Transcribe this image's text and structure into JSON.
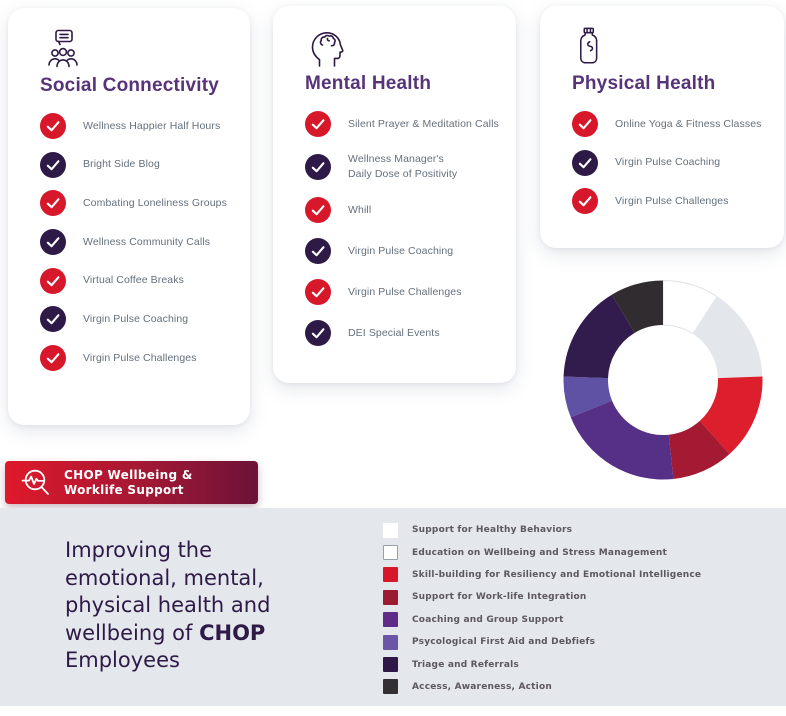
{
  "colors": {
    "check_red": "#d7182a",
    "check_purple": "#2e1a47",
    "title_purple": "#573379",
    "panel_bg": "#e4e7eb",
    "banner_gradient_start": "#e0192b",
    "banner_gradient_end": "#6d1238"
  },
  "cards": [
    {
      "title": "Social Connectivity",
      "icon": "people-chat-icon",
      "items": [
        {
          "label": "Wellness Happier Half Hours",
          "check": "red"
        },
        {
          "label": "Bright Side Blog",
          "check": "purple"
        },
        {
          "label": "Combating Loneliness Groups",
          "check": "red"
        },
        {
          "label": "Wellness Community Calls",
          "check": "purple"
        },
        {
          "label": "Virtual Coffee Breaks",
          "check": "red"
        },
        {
          "label": "Virgin Pulse Coaching",
          "check": "purple"
        },
        {
          "label": "Virgin Pulse Challenges",
          "check": "red"
        }
      ]
    },
    {
      "title": "Mental Health",
      "icon": "head-brain-icon",
      "items": [
        {
          "label": "Silent Prayer & Meditation Calls",
          "check": "red"
        },
        {
          "label": "Wellness Manager's\nDaily Dose of Positivity",
          "check": "purple"
        },
        {
          "label": "Whill",
          "check": "red"
        },
        {
          "label": "Virgin Pulse Coaching",
          "check": "purple"
        },
        {
          "label": "Virgin Pulse Challenges",
          "check": "red"
        },
        {
          "label": "DEI Special Events",
          "check": "purple"
        }
      ]
    },
    {
      "title": "Physical Health",
      "icon": "bottle-icon",
      "items": [
        {
          "label": "Online Yoga & Fitness Classes",
          "check": "red"
        },
        {
          "label": "Virgin Pulse Coaching",
          "check": "purple"
        },
        {
          "label": "Virgin Pulse Challenges",
          "check": "red"
        }
      ]
    }
  ],
  "banner": {
    "icon": "magnifier-pulse-icon",
    "line1": "CHOP Wellbeing &",
    "line2": "Worklife Support"
  },
  "headline": {
    "l1": "Improving the",
    "l2": "emotional, mental,",
    "l3": "physical health and",
    "l4a": "wellbeing of ",
    "l4b": "CHOP",
    "l5": "Employees"
  },
  "chart_data": {
    "type": "pie",
    "donut": true,
    "title": "",
    "legend_position": "bottom-right-panel",
    "start_angle_deg": 0,
    "segments": [
      {
        "label": "Support for Healthy Behaviors",
        "degrees": 33,
        "percent": 9.2,
        "color": "#ffffff",
        "legend_color": "#ffffff"
      },
      {
        "label": "Education on Wellbeing and Stress Management",
        "degrees": 55,
        "percent": 15.3,
        "color": "#e3e6ea",
        "legend_color": "#ffffff",
        "legend_border": "#9aa0a8"
      },
      {
        "label": "Skill-building for Resiliency and Emotional Intelligence",
        "degrees": 50,
        "percent": 13.9,
        "color": "#dc1e2d",
        "legend_color": "#d7182a"
      },
      {
        "label": "Support for Work-life Integration",
        "degrees": 36,
        "percent": 10.0,
        "color": "#a31a32",
        "legend_color": "#9b1b30"
      },
      {
        "label": "Coaching and Group Support",
        "degrees": 74,
        "percent": 20.6,
        "color": "#562f87",
        "legend_color": "#5f2c87"
      },
      {
        "label": "Psycological First Aid and Debfiefs",
        "degrees": 24,
        "percent": 6.7,
        "color": "#5f51a4",
        "legend_color": "#6b55a7"
      },
      {
        "label": "Triage and Referrals",
        "degrees": 57,
        "percent": 15.8,
        "color": "#321b4d",
        "legend_color": "#2f1848"
      },
      {
        "label": "Access, Awareness, Action",
        "degrees": 31,
        "percent": 8.6,
        "color": "#302c30",
        "legend_color": "#333034"
      }
    ]
  }
}
